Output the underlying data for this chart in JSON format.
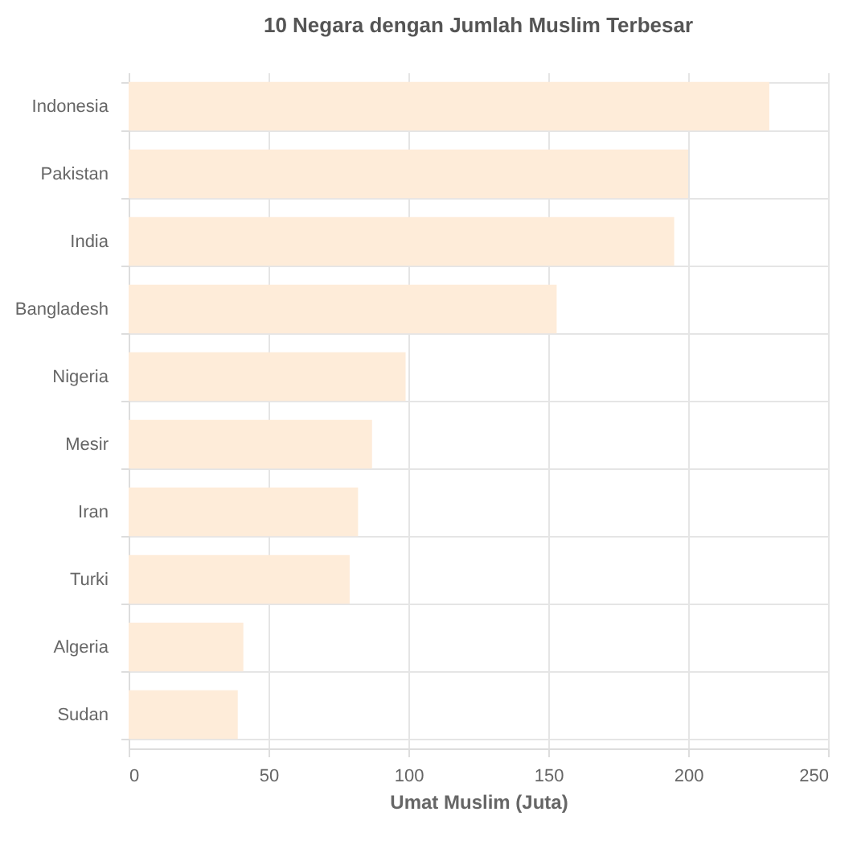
{
  "chart_data": {
    "type": "bar",
    "orientation": "horizontal",
    "title": "10 Negara dengan Jumlah Muslim Terbesar",
    "xlabel": "Umat Muslim (Juta)",
    "categories": [
      "Indonesia",
      "Pakistan",
      "India",
      "Bangladesh",
      "Nigeria",
      "Mesir",
      "Iran",
      "Turki",
      "Algeria",
      "Sudan"
    ],
    "values": [
      229,
      200,
      195,
      153,
      99,
      87,
      82,
      79,
      41,
      39
    ],
    "color": "#feecd9",
    "xlim": [
      0,
      250
    ],
    "xticks": [
      0,
      50,
      100,
      150,
      200,
      250
    ],
    "grid": true
  }
}
